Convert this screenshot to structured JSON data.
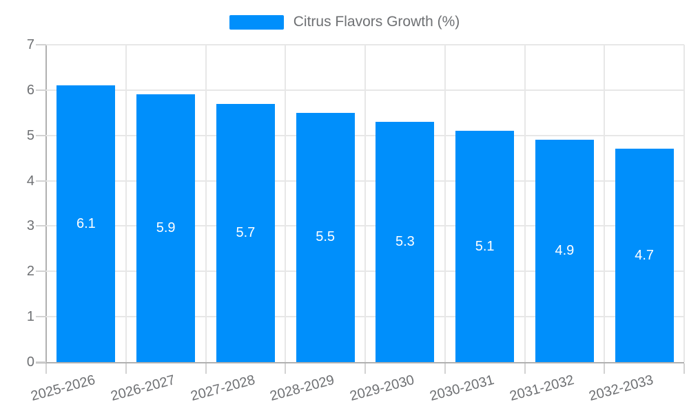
{
  "legend": {
    "label": "Citrus Flavors Growth (%)"
  },
  "colors": {
    "bar": "#008FFB",
    "gridline": "#e7e7e7",
    "axis_line": "#b0b0b0",
    "tick": "#d2d2d2",
    "axis_label": "#6e7073",
    "value_label": "#ffffff",
    "background": "#ffffff"
  },
  "chart_data": {
    "type": "bar",
    "title": "Citrus Flavors Growth (%)",
    "categories": [
      "2025-2026",
      "2026-2027",
      "2027-2028",
      "2028-2029",
      "2029-2030",
      "2030-2031",
      "2031-2032",
      "2032-2033"
    ],
    "values": [
      6.1,
      5.9,
      5.7,
      5.5,
      5.3,
      5.1,
      4.9,
      4.7
    ],
    "value_labels": [
      "6.1",
      "5.9",
      "5.7",
      "5.5",
      "5.3",
      "5.1",
      "4.9",
      "4.7"
    ],
    "series_name": "Citrus Flavors Growth (%)",
    "xlabel": "",
    "ylabel": "",
    "ylim": [
      0,
      7
    ],
    "yticks": [
      0,
      1,
      2,
      3,
      4,
      5,
      6,
      7
    ],
    "ytick_labels": [
      "0",
      "1",
      "2",
      "3",
      "4",
      "5",
      "6",
      "7"
    ],
    "grid": true,
    "legend_position": "top",
    "bar_label_position": "middle",
    "x_label_rotation_deg": -15
  }
}
